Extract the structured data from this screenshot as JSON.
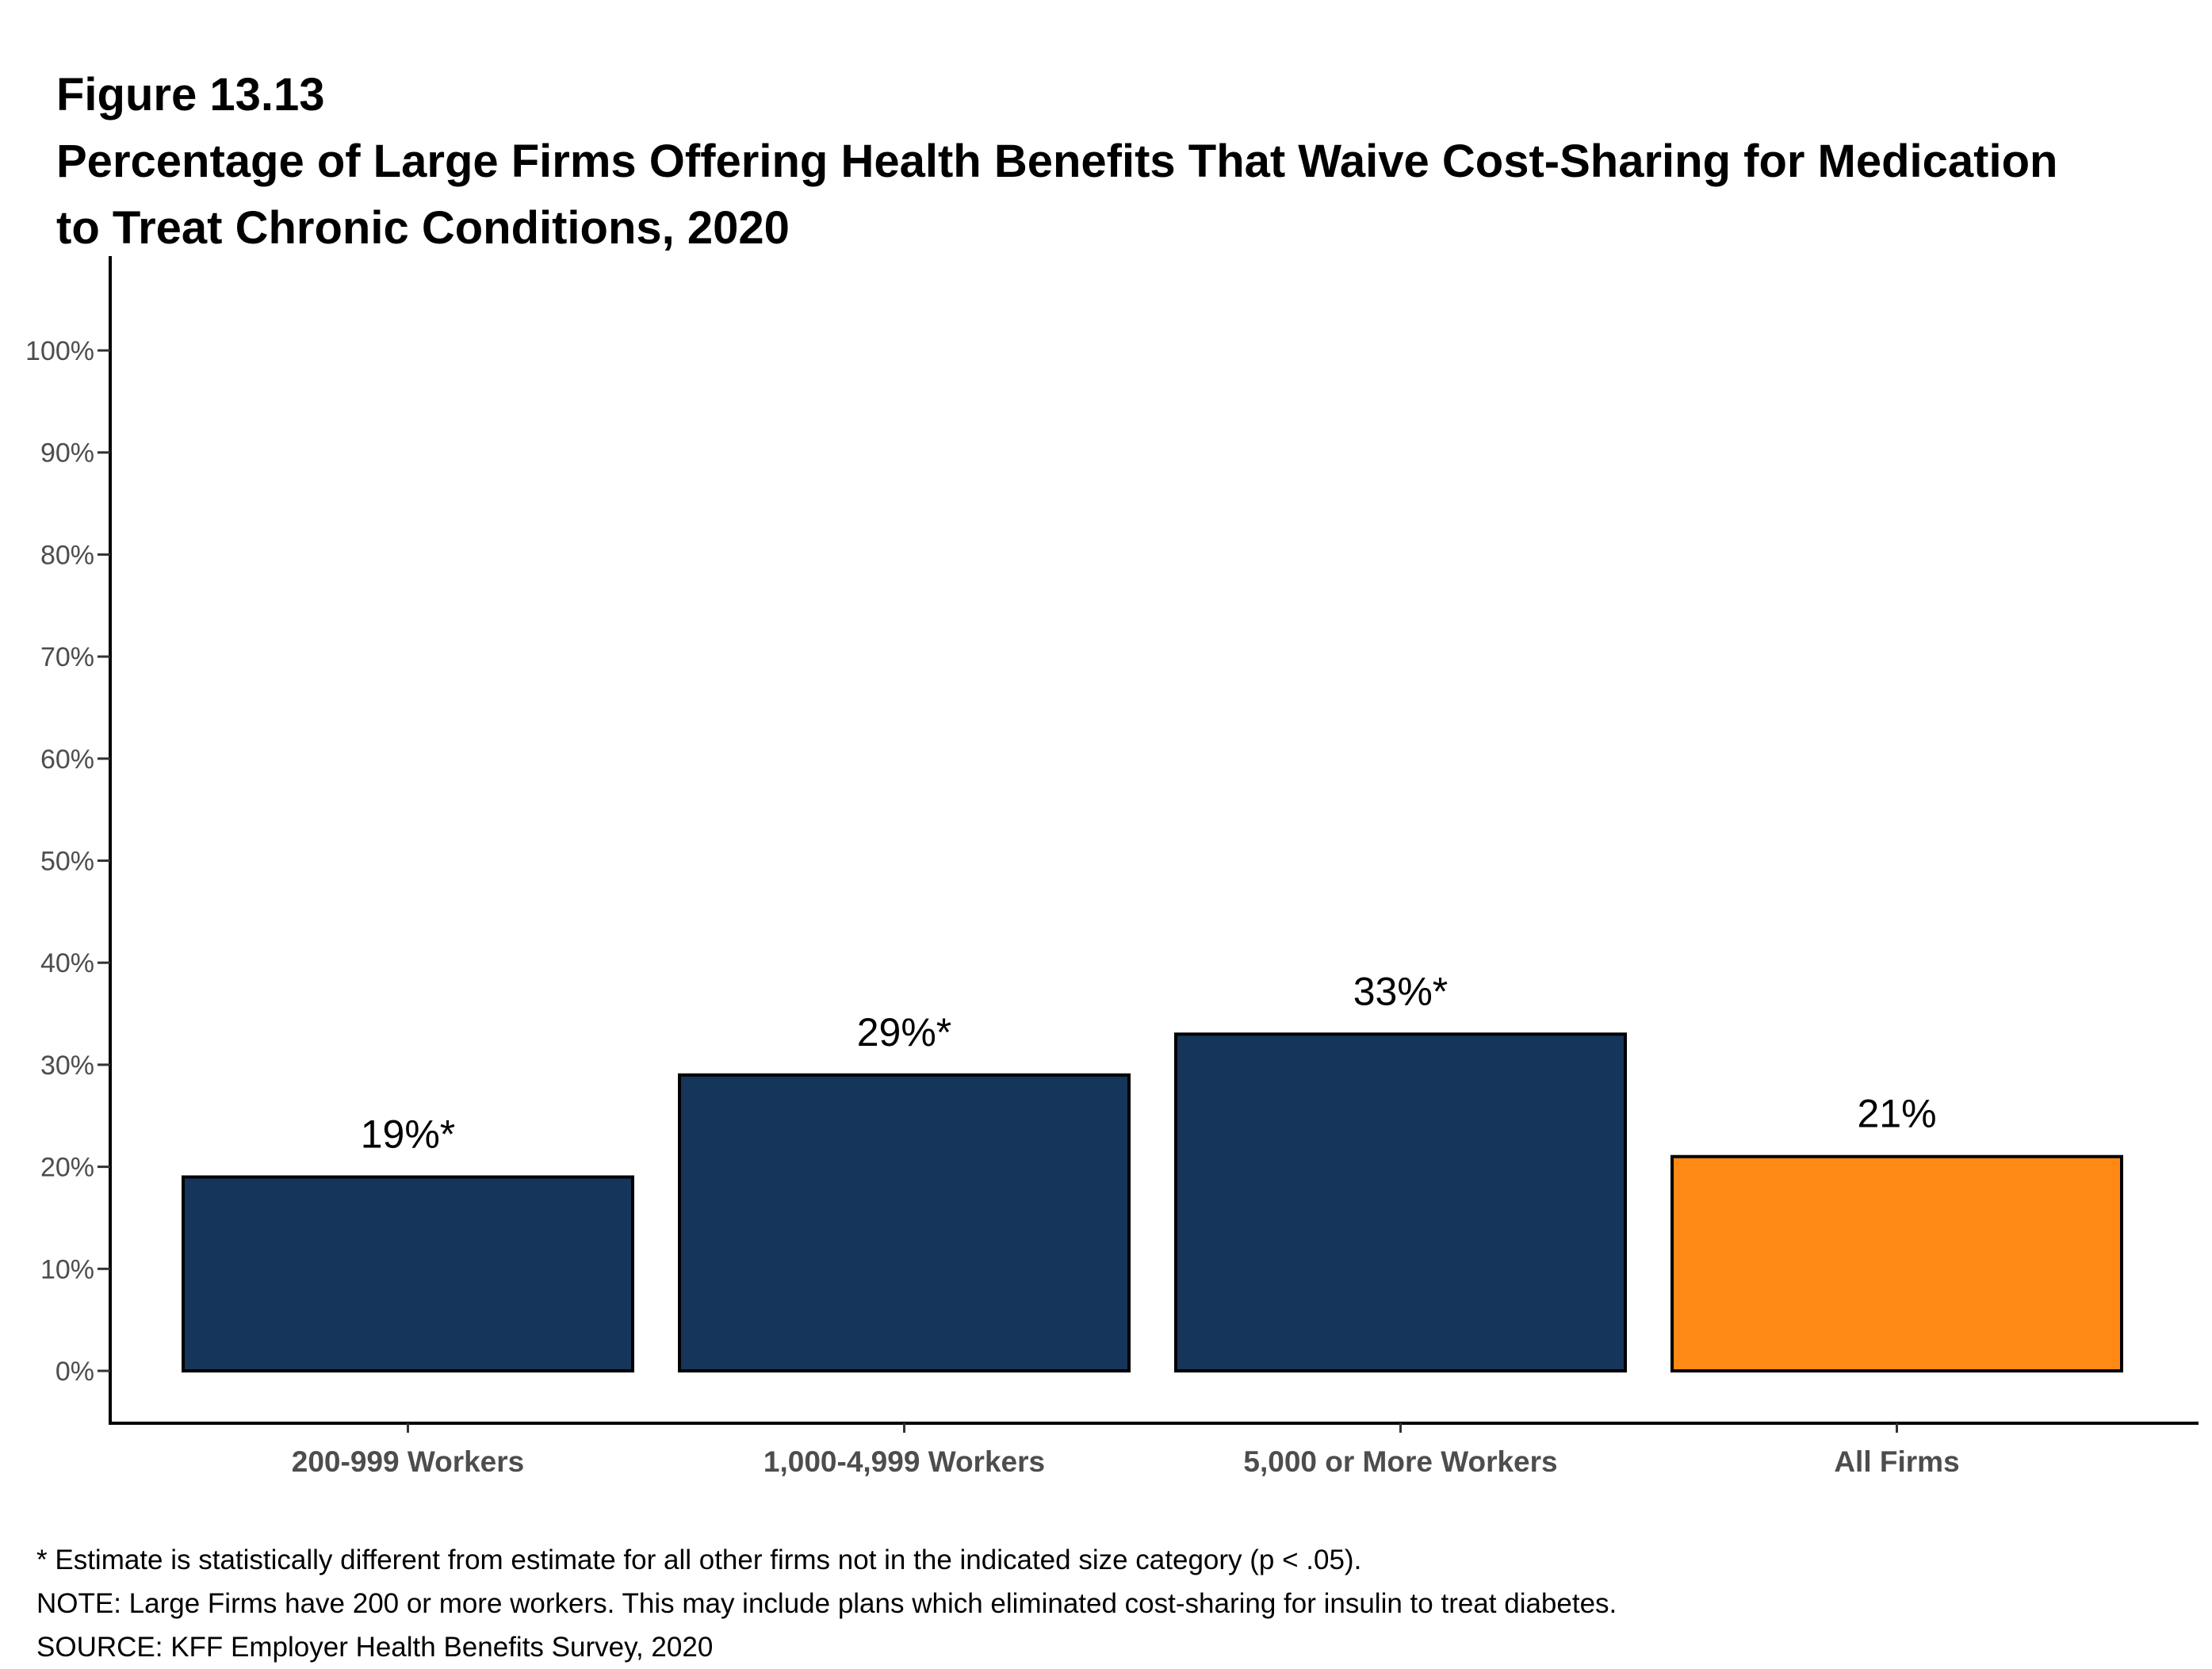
{
  "figure_label": "Figure 13.13",
  "title_lines": [
    "Percentage of Large Firms Offering Health Benefits That Waive Cost-Sharing for Medication",
    "to Treat Chronic Conditions, 2020"
  ],
  "colors": {
    "size_category_bar": "#15355A",
    "all_firms_bar": "#FF8915",
    "axis": "#000000",
    "tick_text": "#4D4D4D"
  },
  "chart_data": {
    "type": "bar",
    "title": "Percentage of Large Firms Offering Health Benefits That Waive Cost-Sharing for Medication to Treat Chronic Conditions, 2020",
    "xlabel": "",
    "ylabel": "",
    "categories": [
      "200-999 Workers",
      "1,000-4,999 Workers",
      "5,000 or More Workers",
      "All Firms"
    ],
    "values": [
      19,
      29,
      33,
      21
    ],
    "unit": "%",
    "data_labels": [
      "19%*",
      "29%*",
      "33%*",
      "21%"
    ],
    "bar_colors": [
      "#15355A",
      "#15355A",
      "#15355A",
      "#FF8915"
    ],
    "ylim": [
      0,
      100
    ],
    "yticks": [
      0,
      10,
      20,
      30,
      40,
      50,
      60,
      70,
      80,
      90,
      100
    ],
    "ytick_labels": [
      "0%",
      "10%",
      "20%",
      "30%",
      "40%",
      "50%",
      "60%",
      "70%",
      "80%",
      "90%",
      "100%"
    ],
    "grid": false,
    "legend": "none"
  },
  "notes": [
    "* Estimate is statistically different from estimate for all other firms not in the indicated size category (p < .05).",
    "NOTE: Large Firms have 200 or more workers.  This may include plans which eliminated cost-sharing for insulin to treat diabetes.",
    "SOURCE: KFF Employer Health Benefits Survey, 2020"
  ]
}
